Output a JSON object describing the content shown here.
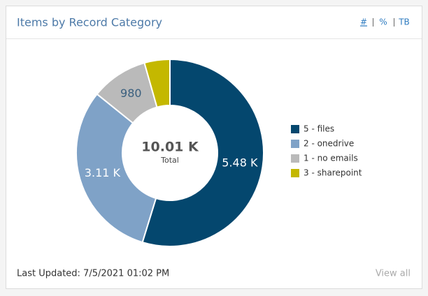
{
  "chart_data": {
    "type": "pie",
    "title": "Items by Record Category",
    "categories": [
      "5 - files",
      "2 - onedrive",
      "1 - no emails",
      "3 - sharepoint"
    ],
    "values": [
      5480,
      3110,
      980,
      440
    ],
    "value_labels": [
      "5.48 K",
      "3.11 K",
      "980",
      null
    ],
    "colors": [
      "#04476e",
      "#7fa2c7",
      "#bababa",
      "#c4b800"
    ],
    "donut": true,
    "center_label": "10.01 K",
    "center_caption": "Total",
    "legend": "right"
  },
  "toggles": [
    "#",
    "%",
    "TB"
  ],
  "footer": {
    "updated": "Last Updated: 7/5/2021 01:02 PM",
    "link": "View all"
  }
}
